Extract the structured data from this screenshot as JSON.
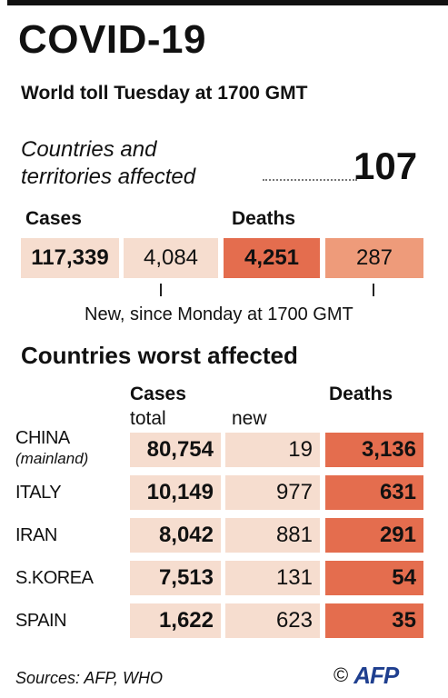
{
  "header": {
    "title": "COVID-19",
    "subtitle": "World toll Tuesday at 1700 GMT"
  },
  "affected": {
    "label_line1": "Countries and",
    "label_line2": "territories affected",
    "value": "107"
  },
  "summary": {
    "cases_label": "Cases",
    "deaths_label": "Deaths",
    "cases_total": "117,339",
    "cases_new": "4,084",
    "deaths_total": "4,251",
    "deaths_new": "287",
    "note": "New, since Monday at 1700 GMT"
  },
  "worst": {
    "title": "Countries worst affected",
    "col_cases": "Cases",
    "col_total": "total",
    "col_new": "new",
    "col_deaths": "Deaths"
  },
  "footer": {
    "sources": "Sources: AFP, WHO",
    "copyright": "©",
    "logo": "AFP"
  },
  "colors": {
    "pale": "#f6ddcf",
    "medium": "#ee9b7a",
    "strong": "#e46d4e",
    "logo_blue": "#1f3f8f"
  },
  "chart_data": {
    "type": "table",
    "title": "Countries worst affected",
    "columns": [
      "Cases total",
      "new",
      "Deaths"
    ],
    "rows": [
      {
        "country": "CHINA",
        "note": "(mainland)",
        "cases_total": "80,754",
        "cases_new": "19",
        "deaths": "3,136"
      },
      {
        "country": "ITALY",
        "note": "",
        "cases_total": "10,149",
        "cases_new": "977",
        "deaths": "631"
      },
      {
        "country": "IRAN",
        "note": "",
        "cases_total": "8,042",
        "cases_new": "881",
        "deaths": "291"
      },
      {
        "country": "S.KOREA",
        "note": "",
        "cases_total": "7,513",
        "cases_new": "131",
        "deaths": "54"
      },
      {
        "country": "SPAIN",
        "note": "",
        "cases_total": "1,622",
        "cases_new": "623",
        "deaths": "35"
      }
    ]
  }
}
